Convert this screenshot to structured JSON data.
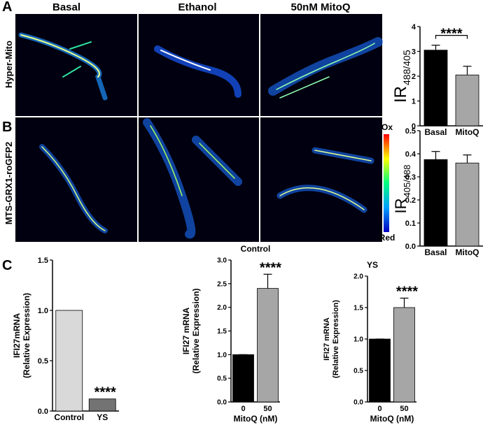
{
  "figure": {
    "panels": [
      "A",
      "B",
      "C"
    ],
    "columns": [
      "Basal",
      "Ethanol",
      "50nM MitoQ"
    ],
    "rows": [
      "Hyper-Mito",
      "MTS-GRX1-roGFP2"
    ],
    "colorbar": {
      "top": "Ox",
      "bottom": "Red"
    }
  },
  "chart_data": [
    {
      "type": "bar",
      "ylabel": "IR",
      "ylabel_subscript": "488/405",
      "categories": [
        "Basal",
        "MitoQ"
      ],
      "values": [
        3.05,
        2.05
      ],
      "errors": [
        0.2,
        0.35
      ],
      "colors": [
        "#000000",
        "#a6a6a6"
      ],
      "ylim": [
        0,
        4
      ],
      "yticks": [
        0,
        1,
        2,
        3,
        4
      ],
      "annotation": "****",
      "bracket": true
    },
    {
      "type": "bar",
      "ylabel": "IR",
      "ylabel_subscript": "405/488",
      "categories": [
        "Basal",
        "MitoQ"
      ],
      "values": [
        0.375,
        0.36
      ],
      "errors": [
        0.035,
        0.035
      ],
      "colors": [
        "#000000",
        "#a6a6a6"
      ],
      "ylim": [
        0,
        0.5
      ],
      "yticks": [
        {
          "value": 0,
          "label": "0.0"
        },
        0.1,
        0.2,
        0.3,
        0.4,
        0.5
      ]
    },
    {
      "type": "bar",
      "ylabel": [
        "IFI27mRNA",
        "(Relative Expression)"
      ],
      "categories": [
        "Control",
        "YS"
      ],
      "values": [
        1.0,
        0.12
      ],
      "colors": [
        "#d9d9d9",
        "#737373"
      ],
      "ylim": [
        0,
        1.5
      ],
      "yticks": [
        {
          "value": 0,
          "label": "0.0"
        },
        0.5,
        {
          "value": 1,
          "label": "1.0"
        },
        1.5
      ],
      "annotation": "****"
    },
    {
      "type": "bar",
      "title": "Control",
      "ylabel": [
        "IFI27 mRNA",
        "(Relative Expression)"
      ],
      "xlabel": "MitoQ (nM)",
      "categories": [
        "0",
        "50"
      ],
      "values": [
        1.0,
        2.4
      ],
      "errors": [
        0,
        0.3
      ],
      "colors": [
        "#000000",
        "#a6a6a6"
      ],
      "ylim": [
        0,
        3
      ],
      "yticks": [
        {
          "value": 0,
          "label": "0.0"
        },
        0.5,
        {
          "value": 1,
          "label": "1.0"
        },
        1.5,
        {
          "value": 2,
          "label": "2.0"
        },
        2.5,
        {
          "value": 3,
          "label": "3.0"
        }
      ],
      "annotation": "****"
    },
    {
      "type": "bar",
      "title": "YS",
      "ylabel": [
        "IFI27 mRNA",
        "(Relative Expression)"
      ],
      "xlabel": "MitoQ (nM)",
      "categories": [
        "0",
        "50"
      ],
      "values": [
        1.0,
        1.5
      ],
      "errors": [
        0,
        0.15
      ],
      "colors": [
        "#000000",
        "#a6a6a6"
      ],
      "ylim": [
        0,
        2
      ],
      "yticks": [
        {
          "value": 0,
          "label": "0.0"
        },
        0.5,
        {
          "value": 1,
          "label": "1.0"
        },
        1.5,
        {
          "value": 2,
          "label": "2.0"
        }
      ],
      "annotation": "****"
    }
  ]
}
